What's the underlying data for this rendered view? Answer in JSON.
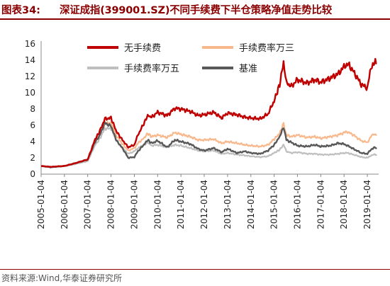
{
  "header": {
    "figure_label": "图表34:",
    "title": "深证成指(399001.SZ)不同手续费下半仓策略净值走势比较"
  },
  "footer": {
    "source": "资料来源:Wind,华泰证券研究所"
  },
  "chart_data": {
    "type": "line",
    "title": "深证成指(399001.SZ)不同手续费下半仓策略净值走势比较",
    "xlabel": "",
    "ylabel": "",
    "x_range": [
      "2005-01-04",
      "2019-06-30"
    ],
    "ylim": [
      0,
      16
    ],
    "yticks": [
      0,
      2,
      4,
      6,
      8,
      10,
      12,
      14,
      16
    ],
    "xticks": [
      "2005-01-04",
      "2006-01-04",
      "2007-01-04",
      "2008-01-04",
      "2009-01-04",
      "2010-01-04",
      "2011-01-04",
      "2012-01-04",
      "2013-01-04",
      "2014-01-04",
      "2015-01-04",
      "2016-01-04",
      "2017-01-04",
      "2018-01-04",
      "2019-01-04"
    ],
    "grid": false,
    "legend_position": "top",
    "series": [
      {
        "name": "无手续费",
        "color": "#c00000",
        "points": [
          [
            "2005-01-04",
            1.0
          ],
          [
            "2005-06-01",
            0.9
          ],
          [
            "2006-01-04",
            1.0
          ],
          [
            "2006-06-01",
            1.3
          ],
          [
            "2007-01-04",
            1.8
          ],
          [
            "2007-05-01",
            4.3
          ],
          [
            "2007-07-01",
            5.1
          ],
          [
            "2007-10-01",
            6.8
          ],
          [
            "2008-01-04",
            6.9
          ],
          [
            "2008-04-01",
            5.2
          ],
          [
            "2008-07-01",
            4.2
          ],
          [
            "2008-10-01",
            3.3
          ],
          [
            "2009-01-04",
            3.6
          ],
          [
            "2009-03-01",
            4.8
          ],
          [
            "2009-06-01",
            6.2
          ],
          [
            "2009-08-01",
            7.2
          ],
          [
            "2009-10-01",
            7.0
          ],
          [
            "2010-01-04",
            7.6
          ],
          [
            "2010-06-01",
            7.2
          ],
          [
            "2010-10-01",
            8.1
          ],
          [
            "2011-01-04",
            8.0
          ],
          [
            "2011-06-01",
            7.7
          ],
          [
            "2011-10-01",
            7.2
          ],
          [
            "2012-01-04",
            7.3
          ],
          [
            "2012-06-01",
            7.6
          ],
          [
            "2012-10-01",
            6.9
          ],
          [
            "2013-01-04",
            7.5
          ],
          [
            "2013-06-01",
            7.3
          ],
          [
            "2013-10-01",
            7.0
          ],
          [
            "2014-01-04",
            6.9
          ],
          [
            "2014-06-01",
            6.8
          ],
          [
            "2014-10-01",
            7.4
          ],
          [
            "2015-01-04",
            9.0
          ],
          [
            "2015-04-01",
            11.0
          ],
          [
            "2015-06-01",
            13.8
          ],
          [
            "2015-07-15",
            11.2
          ],
          [
            "2015-10-01",
            10.8
          ],
          [
            "2016-01-04",
            11.6
          ],
          [
            "2016-06-01",
            11.2
          ],
          [
            "2016-10-01",
            11.6
          ],
          [
            "2017-01-04",
            11.3
          ],
          [
            "2017-06-01",
            11.8
          ],
          [
            "2017-10-01",
            12.3
          ],
          [
            "2018-01-04",
            13.2
          ],
          [
            "2018-03-01",
            13.6
          ],
          [
            "2018-06-01",
            12.6
          ],
          [
            "2018-10-01",
            11.0
          ],
          [
            "2019-01-04",
            10.6
          ],
          [
            "2019-03-01",
            13.0
          ],
          [
            "2019-04-15",
            13.8
          ],
          [
            "2019-06-01",
            13.6
          ]
        ]
      },
      {
        "name": "手续费率万三",
        "color": "#f8b88b",
        "points": [
          [
            "2005-01-04",
            1.0
          ],
          [
            "2005-06-01",
            0.9
          ],
          [
            "2006-01-04",
            1.0
          ],
          [
            "2006-06-01",
            1.25
          ],
          [
            "2007-01-04",
            1.7
          ],
          [
            "2007-05-01",
            4.0
          ],
          [
            "2007-07-01",
            4.7
          ],
          [
            "2007-10-01",
            6.2
          ],
          [
            "2008-01-04",
            6.3
          ],
          [
            "2008-04-01",
            4.7
          ],
          [
            "2008-07-01",
            3.7
          ],
          [
            "2008-10-01",
            2.9
          ],
          [
            "2009-01-04",
            3.2
          ],
          [
            "2009-03-01",
            3.8
          ],
          [
            "2009-06-01",
            4.4
          ],
          [
            "2009-08-01",
            5.0
          ],
          [
            "2009-10-01",
            4.6
          ],
          [
            "2010-01-04",
            4.8
          ],
          [
            "2010-06-01",
            4.5
          ],
          [
            "2010-10-01",
            5.1
          ],
          [
            "2011-01-04",
            4.9
          ],
          [
            "2011-06-01",
            4.6
          ],
          [
            "2011-10-01",
            4.2
          ],
          [
            "2012-01-04",
            4.2
          ],
          [
            "2012-06-01",
            4.3
          ],
          [
            "2012-10-01",
            3.8
          ],
          [
            "2013-01-04",
            4.0
          ],
          [
            "2013-06-01",
            3.8
          ],
          [
            "2013-10-01",
            3.6
          ],
          [
            "2014-01-04",
            3.5
          ],
          [
            "2014-06-01",
            3.4
          ],
          [
            "2014-10-01",
            3.6
          ],
          [
            "2015-01-04",
            4.3
          ],
          [
            "2015-04-01",
            5.0
          ],
          [
            "2015-06-01",
            6.2
          ],
          [
            "2015-07-15",
            4.8
          ],
          [
            "2015-10-01",
            4.6
          ],
          [
            "2016-01-04",
            4.8
          ],
          [
            "2016-06-01",
            4.5
          ],
          [
            "2016-10-01",
            4.6
          ],
          [
            "2017-01-04",
            4.4
          ],
          [
            "2017-06-01",
            4.6
          ],
          [
            "2017-10-01",
            4.8
          ],
          [
            "2018-01-04",
            5.1
          ],
          [
            "2018-03-01",
            5.2
          ],
          [
            "2018-06-01",
            4.8
          ],
          [
            "2018-10-01",
            4.1
          ],
          [
            "2019-01-04",
            3.9
          ],
          [
            "2019-03-01",
            4.6
          ],
          [
            "2019-04-15",
            4.9
          ],
          [
            "2019-06-01",
            4.8
          ]
        ]
      },
      {
        "name": "手续费率万五",
        "color": "#bfbfbf",
        "points": [
          [
            "2005-01-04",
            1.0
          ],
          [
            "2005-06-01",
            0.9
          ],
          [
            "2006-01-04",
            1.0
          ],
          [
            "2006-06-01",
            1.2
          ],
          [
            "2007-01-04",
            1.6
          ],
          [
            "2007-05-01",
            3.6
          ],
          [
            "2007-07-01",
            4.2
          ],
          [
            "2007-10-01",
            5.6
          ],
          [
            "2008-01-04",
            5.6
          ],
          [
            "2008-04-01",
            4.1
          ],
          [
            "2008-07-01",
            3.2
          ],
          [
            "2008-10-01",
            2.5
          ],
          [
            "2009-01-04",
            2.8
          ],
          [
            "2009-03-01",
            3.2
          ],
          [
            "2009-06-01",
            3.6
          ],
          [
            "2009-08-01",
            3.9
          ],
          [
            "2009-10-01",
            3.5
          ],
          [
            "2010-01-04",
            3.6
          ],
          [
            "2010-06-01",
            3.3
          ],
          [
            "2010-10-01",
            3.6
          ],
          [
            "2011-01-04",
            3.5
          ],
          [
            "2011-06-01",
            3.2
          ],
          [
            "2011-10-01",
            2.9
          ],
          [
            "2012-01-04",
            2.8
          ],
          [
            "2012-06-01",
            2.9
          ],
          [
            "2012-10-01",
            2.5
          ],
          [
            "2013-01-04",
            2.6
          ],
          [
            "2013-06-01",
            2.4
          ],
          [
            "2013-10-01",
            2.3
          ],
          [
            "2014-01-04",
            2.2
          ],
          [
            "2014-06-01",
            2.1
          ],
          [
            "2014-10-01",
            2.2
          ],
          [
            "2015-01-04",
            2.6
          ],
          [
            "2015-04-01",
            3.0
          ],
          [
            "2015-06-01",
            3.6
          ],
          [
            "2015-07-15",
            2.8
          ],
          [
            "2015-10-01",
            2.6
          ],
          [
            "2016-01-04",
            2.7
          ],
          [
            "2016-06-01",
            2.5
          ],
          [
            "2016-10-01",
            2.5
          ],
          [
            "2017-01-04",
            2.4
          ],
          [
            "2017-06-01",
            2.4
          ],
          [
            "2017-10-01",
            2.5
          ],
          [
            "2018-01-04",
            2.6
          ],
          [
            "2018-03-01",
            2.6
          ],
          [
            "2018-06-01",
            2.4
          ],
          [
            "2018-10-01",
            2.1
          ],
          [
            "2019-01-04",
            2.0
          ],
          [
            "2019-03-01",
            2.3
          ],
          [
            "2019-04-15",
            2.4
          ],
          [
            "2019-06-01",
            2.4
          ]
        ]
      },
      {
        "name": "基准",
        "color": "#595959",
        "points": [
          [
            "2005-01-04",
            1.0
          ],
          [
            "2005-06-01",
            0.85
          ],
          [
            "2006-01-04",
            1.0
          ],
          [
            "2006-06-01",
            1.3
          ],
          [
            "2007-01-04",
            1.8
          ],
          [
            "2007-05-01",
            4.0
          ],
          [
            "2007-07-01",
            4.6
          ],
          [
            "2007-10-01",
            6.3
          ],
          [
            "2008-01-04",
            5.9
          ],
          [
            "2008-04-01",
            4.1
          ],
          [
            "2008-07-01",
            3.2
          ],
          [
            "2008-10-01",
            2.0
          ],
          [
            "2009-01-04",
            2.1
          ],
          [
            "2009-03-01",
            2.8
          ],
          [
            "2009-06-01",
            3.6
          ],
          [
            "2009-08-01",
            4.2
          ],
          [
            "2009-10-01",
            3.8
          ],
          [
            "2010-01-04",
            4.1
          ],
          [
            "2010-06-01",
            3.3
          ],
          [
            "2010-10-01",
            4.2
          ],
          [
            "2011-01-04",
            4.0
          ],
          [
            "2011-06-01",
            3.7
          ],
          [
            "2011-10-01",
            3.1
          ],
          [
            "2012-01-04",
            2.9
          ],
          [
            "2012-06-01",
            3.2
          ],
          [
            "2012-10-01",
            2.7
          ],
          [
            "2013-01-04",
            3.1
          ],
          [
            "2013-06-01",
            2.6
          ],
          [
            "2013-10-01",
            2.8
          ],
          [
            "2014-01-04",
            2.6
          ],
          [
            "2014-06-01",
            2.5
          ],
          [
            "2014-10-01",
            2.9
          ],
          [
            "2015-01-04",
            3.6
          ],
          [
            "2015-04-01",
            4.6
          ],
          [
            "2015-06-01",
            5.8
          ],
          [
            "2015-07-15",
            4.2
          ],
          [
            "2015-10-01",
            3.9
          ],
          [
            "2016-01-04",
            3.5
          ],
          [
            "2016-06-01",
            3.4
          ],
          [
            "2016-10-01",
            3.6
          ],
          [
            "2017-01-04",
            3.4
          ],
          [
            "2017-06-01",
            3.5
          ],
          [
            "2017-10-01",
            3.8
          ],
          [
            "2018-01-04",
            3.7
          ],
          [
            "2018-03-01",
            3.5
          ],
          [
            "2018-06-01",
            3.1
          ],
          [
            "2018-10-01",
            2.6
          ],
          [
            "2019-01-04",
            2.5
          ],
          [
            "2019-03-01",
            3.0
          ],
          [
            "2019-04-15",
            3.3
          ],
          [
            "2019-06-01",
            3.2
          ]
        ]
      }
    ]
  }
}
